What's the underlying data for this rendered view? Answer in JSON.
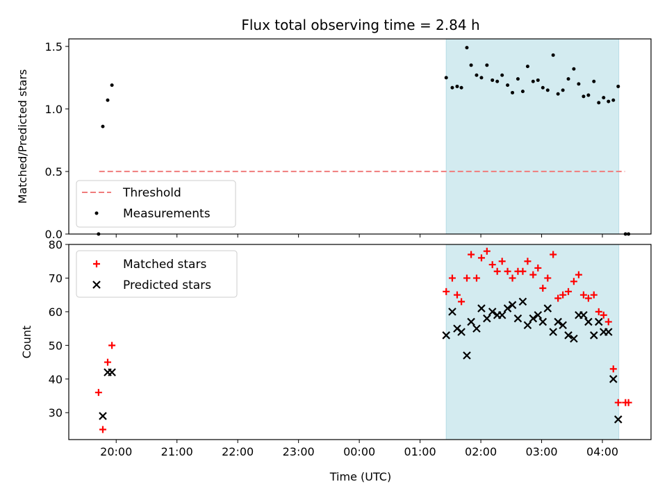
{
  "chart_data": [
    {
      "type": "scatter",
      "title": "Flux total observing time = 2.84 h",
      "xlabel": "",
      "ylabel": "Matched/Predicted stars",
      "ylim": [
        0,
        1.56
      ],
      "yticks": [
        0.0,
        0.5,
        1.0,
        1.5
      ],
      "ytick_labels": [
        "0.0",
        "0.5",
        "1.0",
        "1.5"
      ],
      "xlim": [
        19.22,
        28.8
      ],
      "shaded_span": {
        "x_start": 25.43,
        "x_end": 28.27,
        "color": "#d3ebf0"
      },
      "legend": {
        "placement": "lower-left",
        "entries": [
          "Threshold",
          "Measurements"
        ]
      },
      "threshold": {
        "name": "Threshold",
        "y": 0.5,
        "x_start": 19.72,
        "x_end": 28.37,
        "color": "#f07c7c"
      },
      "series": [
        {
          "name": "Measurements",
          "color": "#000000",
          "x": [
            19.71,
            19.78,
            19.86,
            19.93,
            25.43,
            25.53,
            25.61,
            25.68,
            25.77,
            25.84,
            25.93,
            26.01,
            26.1,
            26.19,
            26.27,
            26.35,
            26.44,
            26.52,
            26.61,
            26.69,
            26.77,
            26.86,
            26.94,
            27.02,
            27.1,
            27.19,
            27.27,
            27.35,
            27.44,
            27.53,
            27.61,
            27.69,
            27.77,
            27.86,
            27.94,
            28.02,
            28.1,
            28.18,
            28.26,
            28.38,
            28.43
          ],
          "y": [
            0.0,
            0.86,
            1.07,
            1.19,
            1.25,
            1.17,
            1.18,
            1.17,
            1.49,
            1.35,
            1.27,
            1.25,
            1.35,
            1.23,
            1.22,
            1.27,
            1.19,
            1.13,
            1.24,
            1.14,
            1.34,
            1.22,
            1.23,
            1.17,
            1.15,
            1.43,
            1.12,
            1.15,
            1.24,
            1.32,
            1.2,
            1.1,
            1.11,
            1.22,
            1.05,
            1.09,
            1.06,
            1.07,
            1.18,
            0.0,
            0.0
          ]
        }
      ]
    },
    {
      "type": "scatter",
      "title": "",
      "xlabel": "Time (UTC)",
      "ylabel": "Count",
      "ylim": [
        22,
        80
      ],
      "yticks": [
        30,
        40,
        50,
        60,
        70,
        80
      ],
      "ytick_labels": [
        "30",
        "40",
        "50",
        "60",
        "70",
        "80"
      ],
      "xlim": [
        19.22,
        28.8
      ],
      "xticks": [
        20,
        21,
        22,
        23,
        24,
        25,
        26,
        27,
        28
      ],
      "xtick_labels": [
        "20:00",
        "21:00",
        "22:00",
        "23:00",
        "00:00",
        "01:00",
        "02:00",
        "03:00",
        "04:00"
      ],
      "shaded_span": {
        "x_start": 25.43,
        "x_end": 28.27,
        "color": "#d3ebf0"
      },
      "legend": {
        "placement": "top-left",
        "entries": [
          "Matched stars",
          "Predicted stars"
        ]
      },
      "series": [
        {
          "name": "Matched stars",
          "marker": "plus",
          "color": "#ff0000",
          "x": [
            19.71,
            19.78,
            19.86,
            19.93,
            25.43,
            25.53,
            25.61,
            25.68,
            25.77,
            25.84,
            25.93,
            26.01,
            26.1,
            26.19,
            26.27,
            26.35,
            26.44,
            26.52,
            26.61,
            26.69,
            26.77,
            26.86,
            26.94,
            27.02,
            27.1,
            27.19,
            27.27,
            27.35,
            27.44,
            27.53,
            27.61,
            27.69,
            27.77,
            27.86,
            27.94,
            28.02,
            28.1,
            28.18,
            28.26,
            28.38,
            28.43
          ],
          "y": [
            36,
            25,
            45,
            50,
            66,
            70,
            65,
            63,
            70,
            77,
            70,
            76,
            78,
            74,
            72,
            75,
            72,
            70,
            72,
            72,
            75,
            71,
            73,
            67,
            70,
            77,
            64,
            65,
            66,
            69,
            71,
            65,
            64,
            65,
            60,
            59,
            57,
            43,
            33,
            33,
            33
          ]
        },
        {
          "name": "Predicted stars",
          "marker": "x",
          "color": "#000000",
          "x": [
            19.78,
            19.86,
            19.93,
            25.43,
            25.53,
            25.61,
            25.68,
            25.77,
            25.84,
            25.93,
            26.01,
            26.1,
            26.19,
            26.27,
            26.35,
            26.44,
            26.52,
            26.61,
            26.69,
            26.77,
            26.86,
            26.94,
            27.02,
            27.1,
            27.19,
            27.27,
            27.35,
            27.44,
            27.53,
            27.61,
            27.69,
            27.77,
            27.86,
            27.94,
            28.02,
            28.1,
            28.18,
            28.26
          ],
          "y": [
            29,
            42,
            42,
            53,
            60,
            55,
            54,
            47,
            57,
            55,
            61,
            58,
            60,
            59,
            59,
            61,
            62,
            58,
            63,
            56,
            58,
            59,
            57,
            61,
            54,
            57,
            56,
            53,
            52,
            59,
            59,
            57,
            53,
            57,
            54,
            54,
            40,
            28
          ]
        }
      ]
    }
  ]
}
